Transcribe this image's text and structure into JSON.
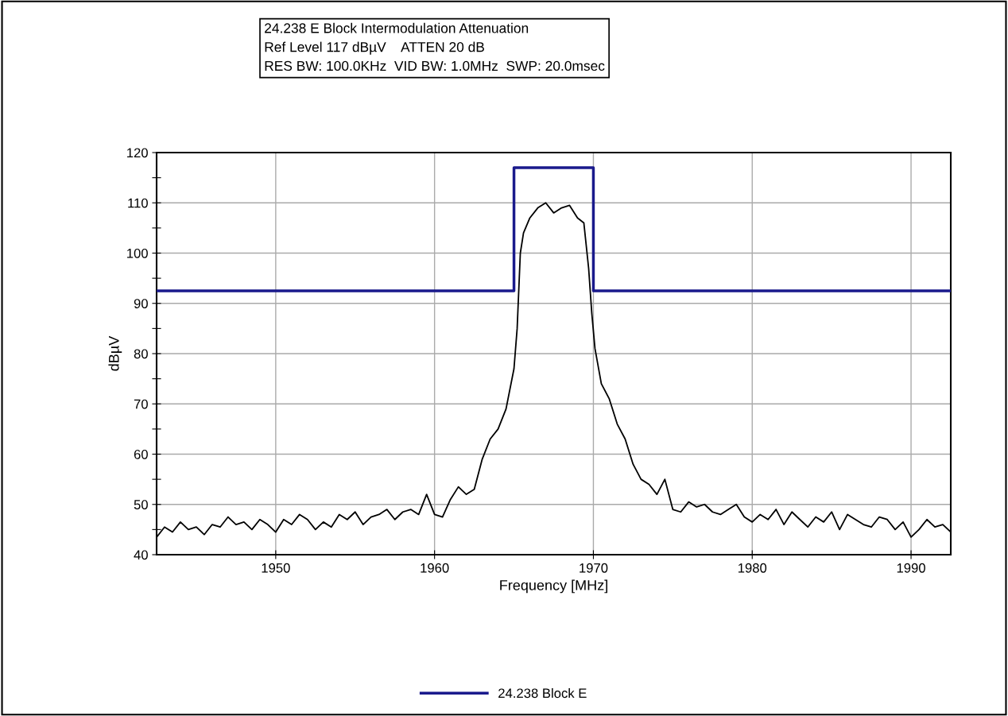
{
  "chart_data": {
    "type": "line",
    "title": "24.238 E Block Intermodulation Attenuation",
    "subtitle": "Ref Level 117 dBµV    ATTEN 20 dB\nRES BW: 100.0KHz  VID BW: 1.0MHz  SWP: 20.0msec",
    "xlabel": "Frequency [MHz]",
    "ylabel": "dBµV",
    "xlim": [
      1942.5,
      1992.5
    ],
    "xticks": [
      1950,
      1960,
      1970,
      1980,
      1990
    ],
    "ylim": [
      40,
      120
    ],
    "yticks": [
      40,
      {
        "value": 45,
        "label": null
      },
      50,
      {
        "value": 55,
        "label": null
      },
      60,
      {
        "value": 65,
        "label": null
      },
      70,
      {
        "value": 75,
        "label": null
      },
      80,
      {
        "value": 85,
        "label": null
      },
      90,
      {
        "value": 95,
        "label": null
      },
      100,
      {
        "value": 105,
        "label": null
      },
      110,
      {
        "value": 115,
        "label": null
      },
      120
    ],
    "grid": true,
    "legend": "bottom",
    "marker": "none",
    "line_style": "solid",
    "series": [
      {
        "name": "24.238 Block E",
        "color": "#1a1a8c",
        "x": [
          1942.5,
          1965,
          1965,
          1970,
          1970,
          1992.5
        ],
        "values": [
          92.5,
          92.5,
          117,
          117,
          92.5,
          92.5
        ]
      },
      {
        "color": "#000000",
        "x": [
          1942.5,
          1943,
          1943.5,
          1944,
          1944.5,
          1945,
          1945.5,
          1946,
          1946.5,
          1947,
          1947.5,
          1948,
          1948.5,
          1949,
          1949.5,
          1950,
          1950.5,
          1951,
          1951.5,
          1952,
          1952.5,
          1953,
          1953.5,
          1954,
          1954.5,
          1955,
          1955.5,
          1956,
          1956.5,
          1957,
          1957.5,
          1958,
          1958.5,
          1959,
          1959.5,
          1960,
          1960.5,
          1961,
          1961.5,
          1962,
          1962.5,
          1963,
          1963.5,
          1964,
          1964.5,
          1965,
          1965.2,
          1965.4,
          1965.6,
          1966,
          1966.5,
          1967,
          1967.5,
          1968,
          1968.5,
          1969,
          1969.4,
          1969.7,
          1969.9,
          1970.1,
          1970.5,
          1971,
          1971.5,
          1972,
          1972.5,
          1973,
          1973.5,
          1974,
          1974.5,
          1975,
          1975.5,
          1976,
          1976.5,
          1977,
          1977.5,
          1978,
          1978.5,
          1979,
          1979.5,
          1980,
          1980.5,
          1981,
          1981.5,
          1982,
          1982.5,
          1983,
          1983.5,
          1984,
          1984.5,
          1985,
          1985.5,
          1986,
          1986.5,
          1987,
          1987.5,
          1988,
          1988.5,
          1989,
          1989.5,
          1990,
          1990.5,
          1991,
          1991.5,
          1992,
          1992.5
        ],
        "values": [
          43.5,
          45.5,
          44.5,
          46.5,
          45,
          45.5,
          44,
          46,
          45.5,
          47.5,
          46,
          46.5,
          45,
          47,
          46,
          44.5,
          47,
          46,
          48,
          47,
          45,
          46.5,
          45.5,
          48,
          47,
          48.5,
          46,
          47.5,
          48,
          49,
          47,
          48.5,
          49,
          48,
          52,
          48,
          47.5,
          51,
          53.5,
          52,
          53,
          59,
          63,
          65,
          69,
          77,
          85,
          100,
          104,
          107,
          109,
          110,
          108,
          109,
          109.5,
          107,
          106,
          97,
          88,
          81,
          74,
          71,
          66,
          63,
          58,
          55,
          54,
          52,
          55,
          49,
          48.5,
          50.5,
          49.5,
          50,
          48.5,
          48,
          49,
          50,
          47.5,
          46.5,
          48,
          47,
          49,
          46,
          48.5,
          47,
          45.5,
          47.5,
          46.5,
          48.5,
          45,
          48,
          47,
          46,
          45.5,
          47.5,
          47,
          45,
          46.5,
          43.5,
          45,
          47,
          45.5,
          46,
          44.5
        ]
      }
    ]
  }
}
